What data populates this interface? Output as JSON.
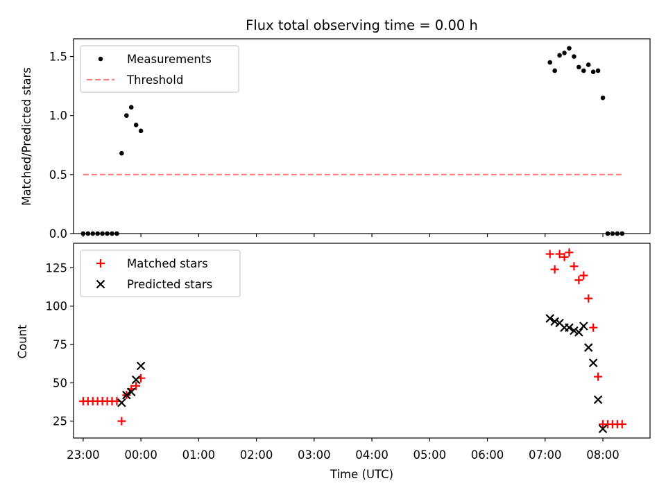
{
  "chart_data": [
    {
      "type": "scatter",
      "title": "Flux total observing time = 0.00 h",
      "xlabel": "",
      "ylabel": "Matched/Predicted stars",
      "xlim": [
        "22:50",
        "08:49"
      ],
      "ylim": [
        0,
        1.65
      ],
      "yticks": [
        0.0,
        0.5,
        1.0,
        1.5
      ],
      "legend": {
        "position": "top-left"
      },
      "grid": false,
      "series": [
        {
          "name": "Measurements",
          "marker": "dot",
          "color": "#000000",
          "points": [
            [
              "23:00",
              0
            ],
            [
              "23:05",
              0
            ],
            [
              "23:10",
              0
            ],
            [
              "23:15",
              0
            ],
            [
              "23:20",
              0
            ],
            [
              "23:25",
              0
            ],
            [
              "23:30",
              0
            ],
            [
              "23:35",
              0
            ],
            [
              "23:40",
              0.68
            ],
            [
              "23:45",
              1.0
            ],
            [
              "23:50",
              1.07
            ],
            [
              "23:55",
              0.92
            ],
            [
              "00:00",
              0.87
            ],
            [
              "07:05",
              1.45
            ],
            [
              "07:10",
              1.38
            ],
            [
              "07:15",
              1.51
            ],
            [
              "07:20",
              1.53
            ],
            [
              "07:25",
              1.57
            ],
            [
              "07:30",
              1.5
            ],
            [
              "07:35",
              1.41
            ],
            [
              "07:40",
              1.38
            ],
            [
              "07:45",
              1.43
            ],
            [
              "07:50",
              1.37
            ],
            [
              "07:55",
              1.38
            ],
            [
              "08:00",
              1.15
            ],
            [
              "08:05",
              0
            ],
            [
              "08:10",
              0
            ],
            [
              "08:15",
              0
            ],
            [
              "08:20",
              0
            ]
          ]
        },
        {
          "name": "Threshold",
          "marker": "dashed-line",
          "color": "#ff8080",
          "points": [
            [
              "23:00",
              0.5
            ],
            [
              "08:20",
              0.5
            ]
          ]
        }
      ]
    },
    {
      "type": "scatter",
      "title": "",
      "xlabel": "Time (UTC)",
      "ylabel": "Count",
      "xlim": [
        "22:50",
        "08:49"
      ],
      "ylim": [
        14,
        141
      ],
      "yticks": [
        25,
        50,
        75,
        100,
        125
      ],
      "xticks": [
        "23:00",
        "00:00",
        "01:00",
        "02:00",
        "03:00",
        "04:00",
        "05:00",
        "06:00",
        "07:00",
        "08:00"
      ],
      "legend": {
        "position": "top-left"
      },
      "grid": false,
      "series": [
        {
          "name": "Matched stars",
          "marker": "plus",
          "color": "#ff0000",
          "points": [
            [
              "23:00",
              38
            ],
            [
              "23:05",
              38
            ],
            [
              "23:10",
              38
            ],
            [
              "23:15",
              38
            ],
            [
              "23:20",
              38
            ],
            [
              "23:25",
              38
            ],
            [
              "23:30",
              38
            ],
            [
              "23:35",
              38
            ],
            [
              "23:40",
              25
            ],
            [
              "23:45",
              42
            ],
            [
              "23:50",
              46
            ],
            [
              "23:55",
              48
            ],
            [
              "00:00",
              53
            ],
            [
              "07:05",
              134
            ],
            [
              "07:10",
              124
            ],
            [
              "07:15",
              134
            ],
            [
              "07:20",
              132
            ],
            [
              "07:25",
              135
            ],
            [
              "07:30",
              126
            ],
            [
              "07:35",
              117
            ],
            [
              "07:40",
              120
            ],
            [
              "07:45",
              105
            ],
            [
              "07:50",
              86
            ],
            [
              "07:55",
              54
            ],
            [
              "08:00",
              23
            ],
            [
              "08:05",
              23
            ],
            [
              "08:10",
              23
            ],
            [
              "08:15",
              23
            ],
            [
              "08:20",
              23
            ]
          ]
        },
        {
          "name": "Predicted stars",
          "marker": "x",
          "color": "#000000",
          "points": [
            [
              "23:40",
              37
            ],
            [
              "23:45",
              42
            ],
            [
              "23:50",
              44
            ],
            [
              "23:55",
              52
            ],
            [
              "00:00",
              61
            ],
            [
              "07:05",
              92
            ],
            [
              "07:10",
              90
            ],
            [
              "07:15",
              89
            ],
            [
              "07:20",
              86
            ],
            [
              "07:25",
              86
            ],
            [
              "07:30",
              84
            ],
            [
              "07:35",
              83
            ],
            [
              "07:40",
              87
            ],
            [
              "07:45",
              73
            ],
            [
              "07:50",
              63
            ],
            [
              "07:55",
              39
            ],
            [
              "08:00",
              20
            ]
          ]
        }
      ]
    }
  ]
}
